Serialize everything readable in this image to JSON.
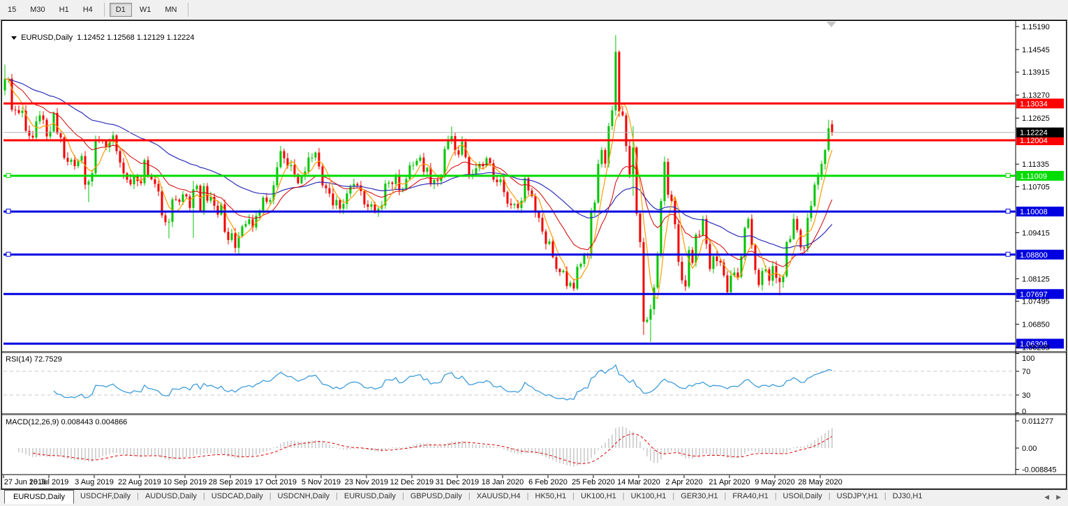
{
  "toolbar": {
    "timeframes": [
      "15",
      "M30",
      "H1",
      "H4",
      "D1",
      "W1",
      "MN"
    ],
    "active": "D1",
    "separators_after": [
      "H4",
      "MN"
    ]
  },
  "chart": {
    "title_symbol": "EURUSD,Daily",
    "title_ohlc": "1.12452 1.12568 1.12129 1.12224"
  },
  "rsi_panel": {
    "label": "RSI(14)",
    "value": "72.7529"
  },
  "macd_panel": {
    "label": "MACD(12,26,9)",
    "values": "0.008443 0.004866"
  },
  "tabs": {
    "items": [
      "EURUSD,Daily",
      "USDCHF,Daily",
      "AUDUSD,Daily",
      "USDCAD,Daily",
      "USDCNH,Daily",
      "EURUSD,Daily",
      "GBPUSD,Daily",
      "XAUUSD,H4",
      "HK50,H1",
      "UK100,H1",
      "UK100,H1",
      "GER30,H1",
      "FRA40,H1",
      "USOil,Daily",
      "USDJPY,H1",
      "DJ30,H1"
    ],
    "active_index": 0,
    "scroll_left": "◀",
    "scroll_right": "▶"
  },
  "palette": {
    "candle_up": "#00c400",
    "candle_down": "#f20000",
    "ma_fast": "#ff9c00",
    "ma_mid": "#d40000",
    "ma_slow": "#2e2eb8",
    "rsi_line": "#3e9cdb",
    "rsi_level_dash": "#c8c8c8",
    "macd_hist": "#ababab",
    "macd_signal": "#de0000",
    "current_price_line": "#b4b4b4",
    "current_price_box": "#000000",
    "axis_text": "#000000"
  },
  "chart_data": {
    "type": "candlestick",
    "symbol": "EURUSD",
    "timeframe": "Daily",
    "title": "EURUSD,Daily 1.12452 1.12568 1.12129 1.12224",
    "x_labels": [
      "27 Jun 2019",
      "16 Jul 2019",
      "3 Aug 2019",
      "22 Aug 2019",
      "10 Sep 2019",
      "28 Sep 2019",
      "17 Oct 2019",
      "5 Nov 2019",
      "23 Nov 2019",
      "12 Dec 2019",
      "31 Dec 2019",
      "18 Jan 2020",
      "6 Feb 2020",
      "25 Feb 2020",
      "14 Mar 2020",
      "2 Apr 2020",
      "21 Apr 2020",
      "9 May 2020",
      "28 May 2020"
    ],
    "y_ticks": [
      1.1519,
      1.14545,
      1.13915,
      1.1327,
      1.12625,
      1.11335,
      1.10705,
      1.09415,
      1.08125,
      1.07495,
      1.0685,
      1.06205
    ],
    "ylim": [
      1.06097,
      1.15288
    ],
    "grid": false,
    "current_price": 1.12224,
    "current_price_label": "1.12224",
    "first_open": 1.134,
    "closes": [
      1.1372,
      1.1373,
      1.1286,
      1.1285,
      1.1277,
      1.1283,
      1.1227,
      1.1213,
      1.1208,
      1.1253,
      1.127,
      1.1258,
      1.1211,
      1.1225,
      1.1277,
      1.122,
      1.1208,
      1.1151,
      1.114,
      1.1146,
      1.1128,
      1.1143,
      1.1156,
      1.1076,
      1.1085,
      1.1108,
      1.1203,
      1.12,
      1.1199,
      1.1181,
      1.1199,
      1.1214,
      1.117,
      1.1138,
      1.1108,
      1.109,
      1.1077,
      1.1099,
      1.1086,
      1.108,
      1.1145,
      1.1101,
      1.1091,
      1.1078,
      1.1057,
      1.099,
      1.0971,
      1.0972,
      1.1035,
      1.1034,
      1.1028,
      1.1049,
      1.1043,
      1.1011,
      1.1063,
      1.1073,
      1.1003,
      1.1072,
      1.1031,
      1.1042,
      1.1017,
      1.0992,
      1.1021,
      1.0944,
      1.0921,
      1.094,
      1.0899,
      1.0932,
      1.0959,
      1.0966,
      1.0979,
      1.0956,
      1.0989,
      1.1004,
      1.104,
      1.1028,
      1.1033,
      1.1074,
      1.1125,
      1.117,
      1.115,
      1.1128,
      1.1131,
      1.1105,
      1.108,
      1.11,
      1.1113,
      1.1152,
      1.1152,
      1.1166,
      1.1127,
      1.1074,
      1.1066,
      1.1051,
      1.1018,
      1.1033,
      1.1009,
      1.1022,
      1.1051,
      1.1071,
      1.1078,
      1.1074,
      1.1058,
      1.1021,
      1.1014,
      1.1021,
      1.1001,
      1.1009,
      1.1018,
      1.1079,
      1.1082,
      1.1078,
      1.1104,
      1.106,
      1.1064,
      1.1092,
      1.113,
      1.1131,
      1.1143,
      1.1152,
      1.1112,
      1.1123,
      1.1077,
      1.1089,
      1.1086,
      1.1098,
      1.1176,
      1.1199,
      1.1212,
      1.1172,
      1.116,
      1.1196,
      1.1153,
      1.1105,
      1.1106,
      1.1122,
      1.1134,
      1.1128,
      1.115,
      1.1136,
      1.109,
      1.1083,
      1.1091,
      1.1055,
      1.1023,
      1.1019,
      1.1022,
      1.1011,
      1.1031,
      1.1094,
      1.106,
      1.1044,
      1.0998,
      1.0983,
      1.0945,
      1.091,
      1.0917,
      1.0873,
      1.084,
      1.0831,
      1.0835,
      1.0792,
      1.0801,
      1.0785,
      1.0846,
      1.0854,
      1.0881,
      1.088,
      1.0999,
      1.1026,
      1.1134,
      1.1173,
      1.1135,
      1.124,
      1.1284,
      1.1448,
      1.1281,
      1.127,
      1.1184,
      1.1105,
      1.118,
      1.0995,
      1.0915,
      1.0692,
      1.0698,
      1.0727,
      1.0788,
      1.088,
      1.103,
      1.114,
      1.1048,
      1.1031,
      1.0965,
      1.086,
      1.0808,
      1.0791,
      1.0893,
      1.0857,
      1.0936,
      1.0935,
      1.098,
      1.091,
      1.084,
      1.0875,
      1.0862,
      1.0858,
      1.0822,
      1.0775,
      1.0821,
      1.083,
      1.0818,
      1.0875,
      1.0955,
      1.098,
      1.0906,
      1.0837,
      1.0795,
      1.0834,
      1.0839,
      1.0807,
      1.0848,
      1.0815,
      1.0803,
      1.082,
      1.0915,
      1.0924,
      1.098,
      1.0949,
      1.09,
      1.0898,
      1.0983,
      1.1017,
      1.1076,
      1.1101,
      1.1134,
      1.1173,
      1.1234
    ],
    "wick_overrides": {
      "0": [
        1.1412,
        null
      ],
      "24": [
        null,
        1.1027
      ],
      "47": [
        null,
        1.0926
      ],
      "54": [
        1.1087,
        1.0927
      ],
      "66": [
        null,
        1.0885
      ],
      "67": [
        null,
        1.0879
      ],
      "128": [
        1.1239,
        null
      ],
      "163": [
        null,
        1.0778
      ],
      "175": [
        1.1495,
        null
      ],
      "180": [
        1.124,
        1.1045
      ],
      "183": [
        null,
        1.0655
      ],
      "185": [
        null,
        1.0636
      ],
      "222": [
        null,
        1.0766
      ],
      "236": [
        1.1258,
        null
      ]
    },
    "last_bar": [
      1.12452,
      1.12568,
      1.12129,
      1.12224
    ],
    "h_lines": [
      {
        "price": 1.13034,
        "label": "1.13034",
        "color": "#ff0000",
        "handles": false
      },
      {
        "price": 1.12004,
        "label": "1.12004",
        "color": "#ff0000",
        "handles": false
      },
      {
        "price": 1.11009,
        "label": "1.11009",
        "color": "#00dc00",
        "handles": true
      },
      {
        "price": 1.10008,
        "label": "1.10008",
        "color": "#0000e0",
        "handles": true
      },
      {
        "price": 1.088,
        "label": "1.08800",
        "color": "#0000e0",
        "handles": true
      },
      {
        "price": 1.07697,
        "label": "1.07697",
        "color": "#0000e0",
        "handles": false
      },
      {
        "price": 1.06306,
        "label": "1.06306",
        "color": "#0000e0",
        "handles": false
      }
    ],
    "moving_averages": [
      {
        "name": "fast",
        "type": "sma",
        "period": 5
      },
      {
        "name": "mid",
        "type": "ema",
        "period": 18
      },
      {
        "name": "slow",
        "type": "ema",
        "period": 50
      }
    ],
    "rsi": {
      "period": 14,
      "levels": [
        70,
        30
      ],
      "ticks": [
        100,
        70,
        30,
        0
      ],
      "value": 72.7529
    },
    "macd": {
      "fast": 12,
      "slow": 26,
      "signal": 9,
      "ticks": [
        "0.011277",
        "0.00",
        "-0.008845"
      ],
      "tick_values": [
        0.011277,
        0,
        -0.008845
      ],
      "value": 0.008443,
      "signal_value": 0.004866
    }
  }
}
